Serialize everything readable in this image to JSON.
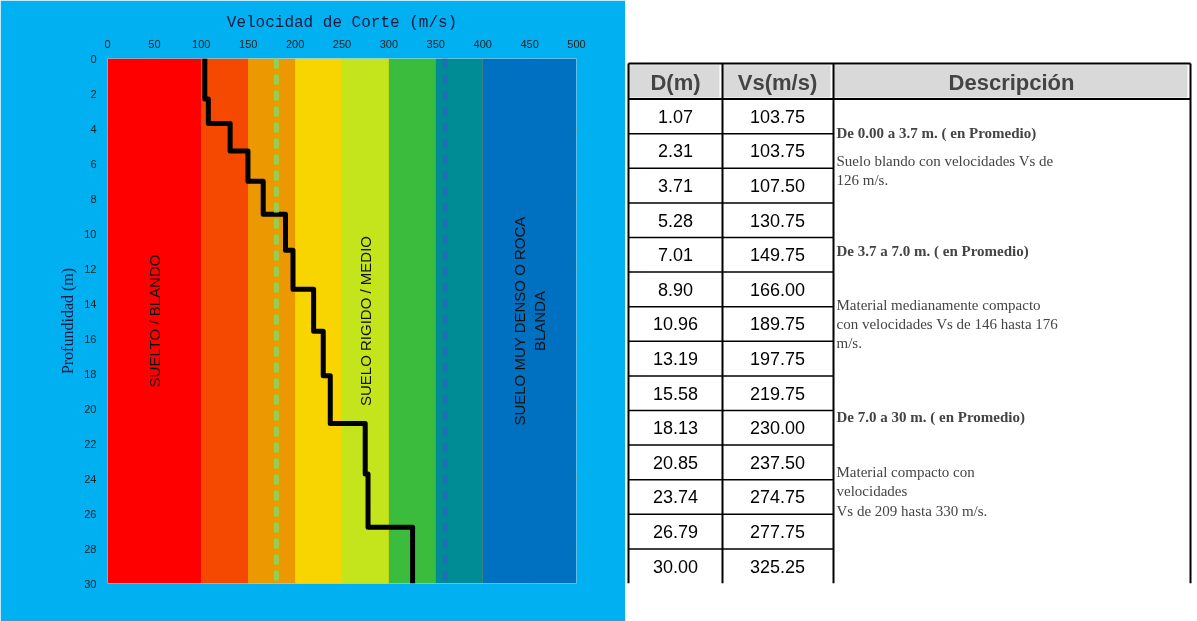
{
  "chart_data": [
    {
      "type": "step",
      "xlabel": "Velocidad de Corte (m/s)",
      "ylabel": "Profundidad (m)",
      "series": [
        {
          "color": "#000000",
          "x": [
            103.75,
            103.75,
            103.75,
            107.5,
            130.75,
            149.75,
            166.0,
            189.75,
            197.75,
            219.75,
            230.0,
            237.5,
            274.75,
            277.75,
            325.25
          ],
          "values": [
            0,
            1.07,
            2.31,
            3.71,
            5.28,
            7.01,
            8.9,
            10.96,
            13.19,
            15.58,
            18.13,
            20.85,
            23.74,
            26.79,
            30.0
          ]
        }
      ],
      "xlim": [
        0,
        500
      ],
      "xticks": [
        0,
        50,
        100,
        150,
        200,
        250,
        300,
        350,
        400,
        450,
        500
      ],
      "ylim": [
        30,
        0
      ],
      "yticks": [
        0,
        2,
        4,
        6,
        8,
        10,
        12,
        14,
        16,
        18,
        20,
        22,
        24,
        26,
        28,
        30
      ],
      "grid": true,
      "marker": "none",
      "line_style": "solid",
      "bands": [
        {
          "axis": "x",
          "from": 0,
          "to": 100,
          "color": "#ff0000",
          "label": "SUELTO / BLANDO"
        },
        {
          "axis": "x",
          "from": 100,
          "to": 150,
          "color": "#f54800",
          "label": null
        },
        {
          "axis": "x",
          "from": 150,
          "to": 200,
          "color": "#ec9800",
          "label": null
        },
        {
          "axis": "x",
          "from": 200,
          "to": 250,
          "color": "#f8d400",
          "label": null
        },
        {
          "axis": "x",
          "from": 250,
          "to": 300,
          "color": "#c4e41c",
          "label": "SUELO RIGIDO / MEDIO"
        },
        {
          "axis": "x",
          "from": 300,
          "to": 350,
          "color": "#3cbc3c",
          "label": null
        },
        {
          "axis": "x",
          "from": 350,
          "to": 400,
          "color": "#008c94",
          "label": null
        },
        {
          "axis": "x",
          "from": 400,
          "to": 500,
          "color": "#0070c0",
          "label": "SUELO MUY DENSO O ROCA\nBLANDA"
        }
      ],
      "ref_lines": [
        {
          "axis": "x",
          "value": 180,
          "label": null,
          "color": "#92d050",
          "line_style": "dashed"
        },
        {
          "axis": "x",
          "value": 360,
          "label": null,
          "color": "#1f6fb4",
          "line_style": "dashed"
        }
      ]
    },
    {
      "type": "other",
      "annotations": [
        "D(m)",
        "Vs(m/s)",
        "Descripción",
        "1.07",
        "103.75",
        "2.31",
        "103.75",
        "3.71",
        "107.50",
        "5.28",
        "130.75",
        "7.01",
        "149.75",
        "8.90",
        "166.00",
        "10.96",
        "189.75",
        "13.19",
        "197.75",
        "15.58",
        "219.75",
        "18.13",
        "230.00",
        "20.85",
        "237.50",
        "23.74",
        "274.75",
        "26.79",
        "277.75",
        "30.00",
        "325.25",
        "De 0.00 a 3.7 m. ( en Promedio)",
        "Suelo blando con velocidades Vs de\n126 m/s.",
        "De 3.7 a 7.0 m. ( en Promedio)",
        "Material medianamente compacto\ncon velocidades Vs de 146 hasta 176\nm/s.",
        "De 7.0 a 30 m. ( en Promedio)",
        "Material compacto con\nvelocidades\nVs de 209 hasta 330 m/s."
      ]
    }
  ]
}
